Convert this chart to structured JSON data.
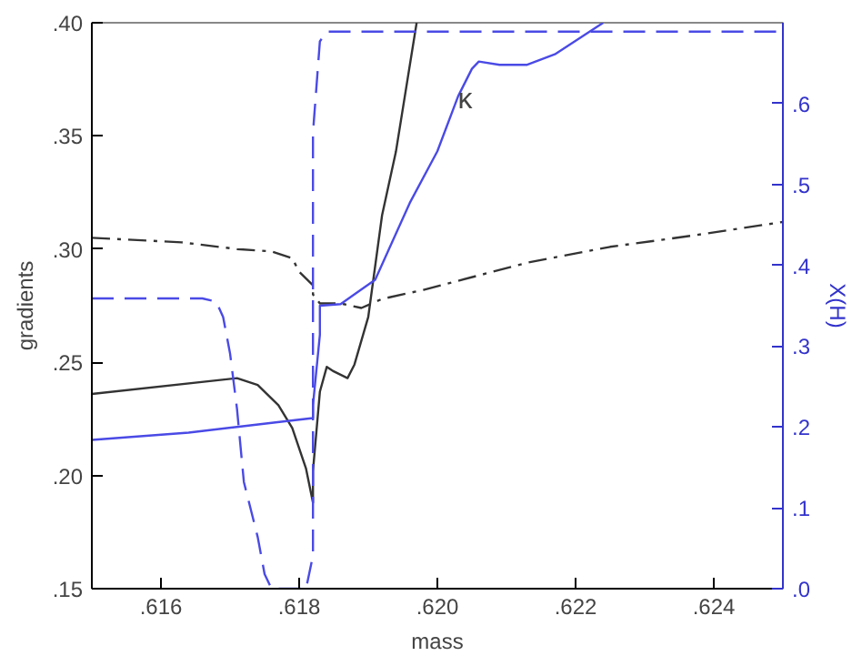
{
  "chart_data": {
    "type": "line",
    "xlabel": "mass",
    "ylabel": "gradients",
    "y2label": "X(H)",
    "xlim": [
      0.615,
      0.625
    ],
    "ylim": [
      0.15,
      0.4
    ],
    "y2lim": [
      0,
      0.7
    ],
    "xticks": [
      {
        "value": 0.616,
        "label": ".616"
      },
      {
        "value": 0.618,
        "label": ".618"
      },
      {
        "value": 0.62,
        "label": ".620"
      },
      {
        "value": 0.622,
        "label": ".622"
      },
      {
        "value": 0.624,
        "label": ".624"
      }
    ],
    "yticks": [
      {
        "value": 0.15,
        "label": ".15"
      },
      {
        "value": 0.2,
        "label": ".20"
      },
      {
        "value": 0.25,
        "label": ".25"
      },
      {
        "value": 0.3,
        "label": ".30"
      },
      {
        "value": 0.35,
        "label": ".35"
      },
      {
        "value": 0.4,
        "label": ".40"
      }
    ],
    "y2ticks": [
      {
        "value": 0,
        "label": ".0"
      },
      {
        "value": 0.1,
        "label": ".1"
      },
      {
        "value": 0.2,
        "label": ".2"
      },
      {
        "value": 0.3,
        "label": ".3"
      },
      {
        "value": 0.4,
        "label": ".4"
      },
      {
        "value": 0.5,
        "label": ".5"
      },
      {
        "value": 0.6,
        "label": ".6"
      }
    ],
    "annotations": [
      {
        "text": "κ",
        "x": 0.6204,
        "y": 0.366
      }
    ],
    "series": [
      {
        "color": "#333333",
        "line_style": "solid",
        "x": [
          0.615,
          0.6171,
          0.6174,
          0.6177,
          0.6179,
          0.6181,
          0.6182,
          0.6182,
          0.6183,
          0.6184,
          0.6185,
          0.6187,
          0.6188,
          0.619,
          0.6192,
          0.6194,
          0.6197
        ],
        "values": [
          0.236,
          0.243,
          0.24,
          0.231,
          0.221,
          0.203,
          0.188,
          0.202,
          0.237,
          0.248,
          0.246,
          0.243,
          0.249,
          0.27,
          0.315,
          0.343,
          0.4
        ]
      },
      {
        "color": "#333333",
        "line_style": "dashdot",
        "x": [
          0.615,
          0.6163,
          0.6171,
          0.6176,
          0.6179,
          0.618,
          0.6182,
          0.6182,
          0.6183,
          0.6186,
          0.6189,
          0.6192,
          0.6198,
          0.6203,
          0.6213,
          0.6225,
          0.6237,
          0.625
        ],
        "values": [
          0.305,
          0.303,
          0.3,
          0.299,
          0.296,
          0.29,
          0.284,
          0.28,
          0.276,
          0.276,
          0.274,
          0.278,
          0.282,
          0.286,
          0.294,
          0.301,
          0.306,
          0.312
        ]
      },
      {
        "color": "#4a4ae6",
        "line_style": "solid",
        "axis": "y2",
        "x": [
          0.615,
          0.6164,
          0.6171,
          0.6178,
          0.6182,
          0.6182,
          0.6183,
          0.6183,
          0.6186,
          0.6188,
          0.6191,
          0.6193,
          0.6196,
          0.62,
          0.6203,
          0.6205,
          0.6206,
          0.6209,
          0.6213,
          0.6217,
          0.6224
        ],
        "values": [
          0.184,
          0.193,
          0.2,
          0.207,
          0.211,
          0.227,
          0.314,
          0.35,
          0.352,
          0.364,
          0.382,
          0.42,
          0.477,
          0.541,
          0.609,
          0.643,
          0.652,
          0.648,
          0.648,
          0.661,
          0.7
        ]
      },
      {
        "color": "#4a4ae6",
        "line_style": "dashed",
        "axis": "y2",
        "x": [
          0.615,
          0.6166,
          0.6168,
          0.6169,
          0.617,
          0.6171,
          0.6172,
          0.6174,
          0.6175,
          0.6176,
          0.6181,
          0.6182,
          0.6182,
          0.6182,
          0.6182,
          0.6183,
          0.6184,
          0.625
        ],
        "values": [
          0.359,
          0.359,
          0.355,
          0.336,
          0.291,
          0.223,
          0.132,
          0.064,
          0.018,
          0,
          0,
          0.041,
          0.177,
          0.405,
          0.564,
          0.677,
          0.689,
          0.689
        ]
      }
    ]
  }
}
